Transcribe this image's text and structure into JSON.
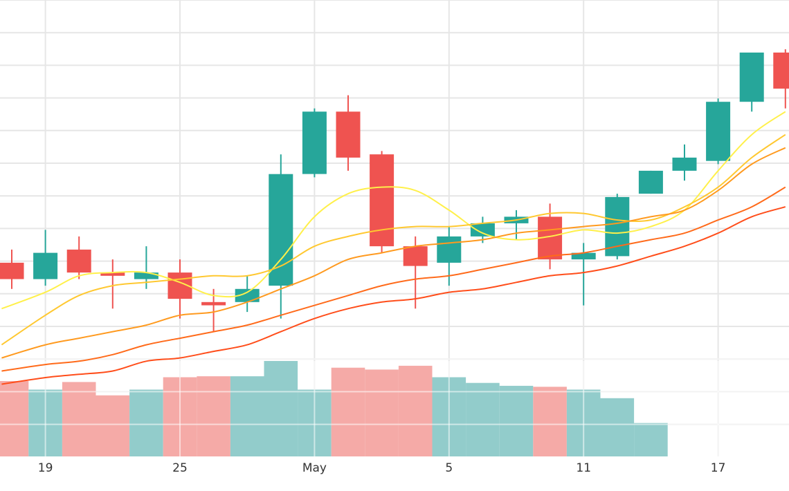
{
  "chart_data": {
    "type": "candlestick",
    "title": "",
    "xlabel": "",
    "ylabel": "",
    "grid": true,
    "legend": "none",
    "x_ticks": [
      {
        "day": 1,
        "label": "19"
      },
      {
        "day": 5,
        "label": "25"
      },
      {
        "day": 9,
        "label": "May"
      },
      {
        "day": 13,
        "label": "5"
      },
      {
        "day": 17,
        "label": "11"
      },
      {
        "day": 21,
        "label": "17"
      }
    ],
    "ylim": [
      12.4,
      26.3
    ],
    "candles": [
      {
        "day": 0,
        "open": 18.3,
        "high": 18.7,
        "low": 17.5,
        "close": 17.8
      },
      {
        "day": 1,
        "open": 17.8,
        "high": 19.3,
        "low": 17.6,
        "close": 18.6
      },
      {
        "day": 2,
        "open": 18.7,
        "high": 19.1,
        "low": 17.8,
        "close": 18.0
      },
      {
        "day": 3,
        "open": 18.0,
        "high": 18.4,
        "low": 16.9,
        "close": 17.9
      },
      {
        "day": 4,
        "open": 17.8,
        "high": 18.8,
        "low": 17.5,
        "close": 18.0
      },
      {
        "day": 5,
        "open": 18.0,
        "high": 18.4,
        "low": 16.6,
        "close": 17.2
      },
      {
        "day": 6,
        "open": 17.1,
        "high": 17.5,
        "low": 16.2,
        "close": 17.0
      },
      {
        "day": 7,
        "open": 17.1,
        "high": 17.9,
        "low": 16.8,
        "close": 17.5
      },
      {
        "day": 8,
        "open": 17.6,
        "high": 21.6,
        "low": 16.6,
        "close": 21.0
      },
      {
        "day": 9,
        "open": 21.0,
        "high": 23.0,
        "low": 20.9,
        "close": 22.9
      },
      {
        "day": 10,
        "open": 22.9,
        "high": 23.4,
        "low": 21.1,
        "close": 21.5
      },
      {
        "day": 11,
        "open": 21.6,
        "high": 21.7,
        "low": 18.6,
        "close": 18.8
      },
      {
        "day": 12,
        "open": 18.8,
        "high": 19.1,
        "low": 16.9,
        "close": 18.2
      },
      {
        "day": 13,
        "open": 18.3,
        "high": 19.4,
        "low": 17.6,
        "close": 19.1
      },
      {
        "day": 14,
        "open": 19.1,
        "high": 19.7,
        "low": 18.9,
        "close": 19.5
      },
      {
        "day": 15,
        "open": 19.5,
        "high": 19.9,
        "low": 19.0,
        "close": 19.7
      },
      {
        "day": 16,
        "open": 19.7,
        "high": 20.1,
        "low": 18.1,
        "close": 18.4
      },
      {
        "day": 17,
        "open": 18.4,
        "high": 18.9,
        "low": 17.0,
        "close": 18.6
      },
      {
        "day": 18,
        "open": 18.5,
        "high": 20.4,
        "low": 18.4,
        "close": 20.3
      },
      {
        "day": 19,
        "open": 20.4,
        "high": 21.1,
        "low": 20.4,
        "close": 21.1
      },
      {
        "day": 20,
        "open": 21.1,
        "high": 21.9,
        "low": 20.8,
        "close": 21.5
      },
      {
        "day": 21,
        "open": 21.4,
        "high": 23.3,
        "low": 21.3,
        "close": 23.2
      },
      {
        "day": 22,
        "open": 23.2,
        "high": 24.7,
        "low": 22.9,
        "close": 24.7
      },
      {
        "day": 23,
        "open": 24.7,
        "high": 24.8,
        "low": 23.0,
        "close": 23.6
      }
    ],
    "moving_averages": [
      {
        "color": "#fff04a",
        "values": [
          {
            "day": -0.3,
            "value": 16.9
          },
          {
            "day": 1,
            "value": 17.4
          },
          {
            "day": 2,
            "value": 17.9
          },
          {
            "day": 3,
            "value": 18.0
          },
          {
            "day": 4,
            "value": 18.0
          },
          {
            "day": 5,
            "value": 17.7
          },
          {
            "day": 6,
            "value": 17.3
          },
          {
            "day": 7,
            "value": 17.4
          },
          {
            "day": 8,
            "value": 18.4
          },
          {
            "day": 9,
            "value": 19.7
          },
          {
            "day": 10,
            "value": 20.4
          },
          {
            "day": 11,
            "value": 20.6
          },
          {
            "day": 12,
            "value": 20.5
          },
          {
            "day": 13,
            "value": 19.9
          },
          {
            "day": 14,
            "value": 19.2
          },
          {
            "day": 15,
            "value": 19.0
          },
          {
            "day": 16,
            "value": 19.1
          },
          {
            "day": 17,
            "value": 19.3
          },
          {
            "day": 18,
            "value": 19.2
          },
          {
            "day": 19,
            "value": 19.4
          },
          {
            "day": 20,
            "value": 19.9
          },
          {
            "day": 21,
            "value": 21.1
          },
          {
            "day": 22,
            "value": 22.2
          },
          {
            "day": 23,
            "value": 22.9
          }
        ]
      },
      {
        "color": "#ffc830",
        "values": [
          {
            "day": -0.3,
            "value": 15.8
          },
          {
            "day": 1,
            "value": 16.7
          },
          {
            "day": 2,
            "value": 17.3
          },
          {
            "day": 3,
            "value": 17.6
          },
          {
            "day": 4,
            "value": 17.7
          },
          {
            "day": 5,
            "value": 17.8
          },
          {
            "day": 6,
            "value": 17.9
          },
          {
            "day": 7,
            "value": 17.9
          },
          {
            "day": 8,
            "value": 18.2
          },
          {
            "day": 9,
            "value": 18.8
          },
          {
            "day": 10,
            "value": 19.1
          },
          {
            "day": 11,
            "value": 19.3
          },
          {
            "day": 12,
            "value": 19.4
          },
          {
            "day": 13,
            "value": 19.4
          },
          {
            "day": 14,
            "value": 19.5
          },
          {
            "day": 15,
            "value": 19.6
          },
          {
            "day": 16,
            "value": 19.8
          },
          {
            "day": 17,
            "value": 19.8
          },
          {
            "day": 18,
            "value": 19.6
          },
          {
            "day": 19,
            "value": 19.6
          },
          {
            "day": 20,
            "value": 20.0
          },
          {
            "day": 21,
            "value": 20.6
          },
          {
            "day": 22,
            "value": 21.5
          },
          {
            "day": 23,
            "value": 22.2
          }
        ]
      },
      {
        "color": "#ff9a1f",
        "values": [
          {
            "day": -0.3,
            "value": 15.4
          },
          {
            "day": 1,
            "value": 15.8
          },
          {
            "day": 2,
            "value": 16.0
          },
          {
            "day": 3,
            "value": 16.2
          },
          {
            "day": 4,
            "value": 16.4
          },
          {
            "day": 5,
            "value": 16.7
          },
          {
            "day": 6,
            "value": 16.8
          },
          {
            "day": 7,
            "value": 17.1
          },
          {
            "day": 8,
            "value": 17.5
          },
          {
            "day": 9,
            "value": 17.9
          },
          {
            "day": 10,
            "value": 18.4
          },
          {
            "day": 11,
            "value": 18.6
          },
          {
            "day": 12,
            "value": 18.8
          },
          {
            "day": 13,
            "value": 18.9
          },
          {
            "day": 14,
            "value": 19.0
          },
          {
            "day": 15,
            "value": 19.2
          },
          {
            "day": 16,
            "value": 19.3
          },
          {
            "day": 17,
            "value": 19.4
          },
          {
            "day": 18,
            "value": 19.5
          },
          {
            "day": 19,
            "value": 19.7
          },
          {
            "day": 20,
            "value": 19.9
          },
          {
            "day": 21,
            "value": 20.5
          },
          {
            "day": 22,
            "value": 21.3
          },
          {
            "day": 23,
            "value": 21.8
          }
        ]
      },
      {
        "color": "#ff6a1a",
        "values": [
          {
            "day": -0.3,
            "value": 15.0
          },
          {
            "day": 1,
            "value": 15.2
          },
          {
            "day": 2,
            "value": 15.3
          },
          {
            "day": 3,
            "value": 15.5
          },
          {
            "day": 4,
            "value": 15.8
          },
          {
            "day": 5,
            "value": 16.0
          },
          {
            "day": 6,
            "value": 16.2
          },
          {
            "day": 7,
            "value": 16.4
          },
          {
            "day": 8,
            "value": 16.7
          },
          {
            "day": 9,
            "value": 17.0
          },
          {
            "day": 10,
            "value": 17.3
          },
          {
            "day": 11,
            "value": 17.6
          },
          {
            "day": 12,
            "value": 17.8
          },
          {
            "day": 13,
            "value": 17.9
          },
          {
            "day": 14,
            "value": 18.1
          },
          {
            "day": 15,
            "value": 18.3
          },
          {
            "day": 16,
            "value": 18.5
          },
          {
            "day": 17,
            "value": 18.6
          },
          {
            "day": 18,
            "value": 18.8
          },
          {
            "day": 19,
            "value": 19.0
          },
          {
            "day": 20,
            "value": 19.2
          },
          {
            "day": 21,
            "value": 19.6
          },
          {
            "day": 22,
            "value": 20.0
          },
          {
            "day": 23,
            "value": 20.6
          }
        ]
      },
      {
        "color": "#ff4d1a",
        "values": [
          {
            "day": -0.3,
            "value": 14.6
          },
          {
            "day": 1,
            "value": 14.8
          },
          {
            "day": 2,
            "value": 14.9
          },
          {
            "day": 3,
            "value": 15.0
          },
          {
            "day": 4,
            "value": 15.3
          },
          {
            "day": 5,
            "value": 15.4
          },
          {
            "day": 6,
            "value": 15.6
          },
          {
            "day": 7,
            "value": 15.8
          },
          {
            "day": 8,
            "value": 16.2
          },
          {
            "day": 9,
            "value": 16.6
          },
          {
            "day": 10,
            "value": 16.9
          },
          {
            "day": 11,
            "value": 17.1
          },
          {
            "day": 12,
            "value": 17.2
          },
          {
            "day": 13,
            "value": 17.4
          },
          {
            "day": 14,
            "value": 17.5
          },
          {
            "day": 15,
            "value": 17.7
          },
          {
            "day": 16,
            "value": 17.9
          },
          {
            "day": 17,
            "value": 18.0
          },
          {
            "day": 18,
            "value": 18.2
          },
          {
            "day": 19,
            "value": 18.5
          },
          {
            "day": 20,
            "value": 18.8
          },
          {
            "day": 21,
            "value": 19.2
          },
          {
            "day": 22,
            "value": 19.7
          },
          {
            "day": 23,
            "value": 20.0
          }
        ]
      }
    ],
    "volume": {
      "max": 100,
      "bars": [
        {
          "day": 0,
          "value": 79
        },
        {
          "day": 1,
          "value": 70
        },
        {
          "day": 2,
          "value": 78
        },
        {
          "day": 3,
          "value": 64
        },
        {
          "day": 4,
          "value": 70
        },
        {
          "day": 5,
          "value": 83
        },
        {
          "day": 6,
          "value": 84
        },
        {
          "day": 7,
          "value": 84
        },
        {
          "day": 8,
          "value": 100
        },
        {
          "day": 9,
          "value": 70
        },
        {
          "day": 10,
          "value": 93
        },
        {
          "day": 11,
          "value": 91
        },
        {
          "day": 12,
          "value": 95
        },
        {
          "day": 13,
          "value": 83
        },
        {
          "day": 14,
          "value": 77
        },
        {
          "day": 15,
          "value": 74
        },
        {
          "day": 16,
          "value": 73
        },
        {
          "day": 17,
          "value": 70
        },
        {
          "day": 18,
          "value": 61
        },
        {
          "day": 19,
          "value": 35
        }
      ]
    },
    "colors": {
      "up": "#26a69a",
      "down": "#ef5350",
      "volume_up": "#92cccb",
      "volume_down": "#f5aaa7",
      "grid": "#e6e6e6",
      "text": "#333333"
    }
  }
}
